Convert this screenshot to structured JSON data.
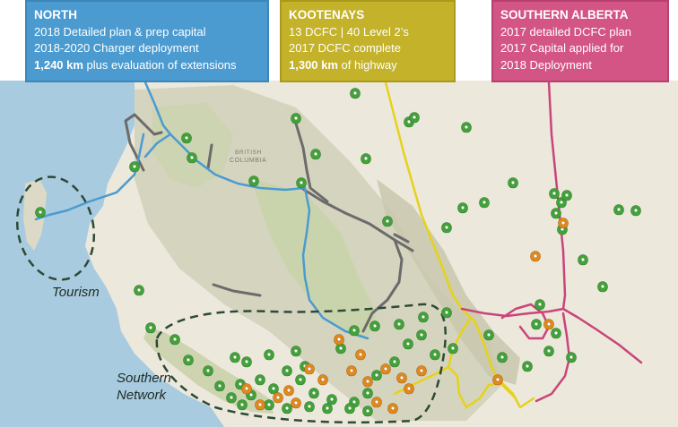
{
  "callouts": {
    "north": {
      "title": "NORTH",
      "line1": "2018 Detailed plan & prep capital",
      "line2": "2018-2020 Charger deployment",
      "line3_bold": "1,240 km",
      "line3_rest": " plus evaluation of extensions",
      "color": "#4b9bd0"
    },
    "kootenays": {
      "title": "KOOTENAYS",
      "line1": "13 DCFC | 40 Level 2’s",
      "line2": "2017 DCFC complete",
      "line3_bold": "1,300 km",
      "line3_rest": " of highway",
      "color": "#c3b22a"
    },
    "southern_alberta": {
      "title": "SOUTHERN ALBERTA",
      "line1": "2017 detailed DCFC plan",
      "line2": "2017 Capital applied for",
      "line3": "2018 Deployment",
      "color": "#d35585"
    }
  },
  "map_labels": {
    "tourism": "Tourism",
    "southern_network_line1": "Southern",
    "southern_network_line2": "Network",
    "province_line1": "BRITISH",
    "province_line2": "COLUMBIA"
  },
  "colors": {
    "ocean": "#a9cbe0",
    "land": "#ece8dc",
    "mountains": "#d3d2bb",
    "forest": "#c7d3a8",
    "route_north": "#4b9bd0",
    "route_kootenays": "#e6d21c",
    "route_alberta": "#c9457a",
    "highway_grey": "#6b6b6b",
    "marker_green": "#43a33a",
    "marker_orange": "#e08a1e"
  },
  "icons": {
    "marker": "charging-station-marker-icon"
  }
}
